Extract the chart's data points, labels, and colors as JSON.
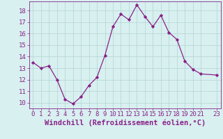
{
  "x": [
    0,
    1,
    2,
    3,
    4,
    5,
    6,
    7,
    8,
    9,
    10,
    11,
    12,
    13,
    14,
    15,
    16,
    17,
    18,
    19,
    20,
    21,
    23
  ],
  "y": [
    13.5,
    13.0,
    13.2,
    12.0,
    10.3,
    9.9,
    10.5,
    11.5,
    12.2,
    14.1,
    16.6,
    17.7,
    17.2,
    18.5,
    17.5,
    16.6,
    17.6,
    16.1,
    15.5,
    13.6,
    12.9,
    12.5,
    12.4
  ],
  "line_color": "#882288",
  "marker_color": "#882288",
  "bg_color": "#d8f0f0",
  "grid_color": "#b8d8d8",
  "text_color": "#882288",
  "xlabel": "Windchill (Refroidissement éolien,°C)",
  "xlim": [
    -0.5,
    23.5
  ],
  "ylim": [
    9.5,
    18.8
  ],
  "yticks": [
    10,
    11,
    12,
    13,
    14,
    15,
    16,
    17,
    18
  ],
  "xticks": [
    0,
    1,
    2,
    3,
    4,
    5,
    6,
    7,
    8,
    9,
    10,
    11,
    12,
    13,
    14,
    15,
    16,
    17,
    18,
    19,
    20,
    21,
    23
  ],
  "tick_fontsize": 6.5,
  "xlabel_fontsize": 7.5,
  "line_width": 0.9,
  "marker_size": 2.2
}
